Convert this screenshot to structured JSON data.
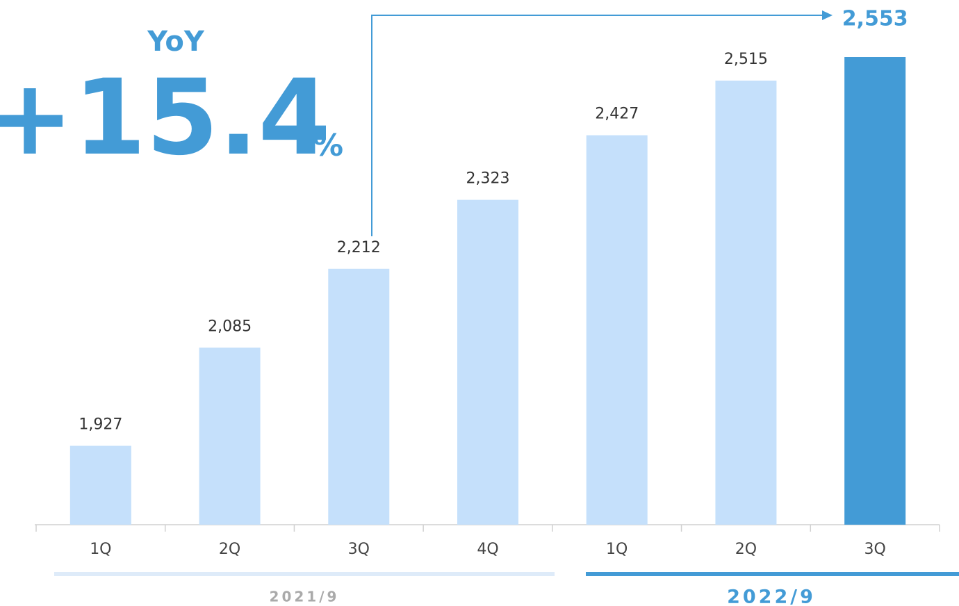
{
  "chart_data": {
    "type": "bar",
    "categories": [
      "1Q",
      "2Q",
      "3Q",
      "4Q",
      "1Q",
      "2Q",
      "3Q"
    ],
    "values": [
      1927,
      2085,
      2212,
      2323,
      2427,
      2515,
      2553
    ],
    "value_labels": [
      "1,927",
      "2,085",
      "2,212",
      "2,323",
      "2,427",
      "2,515",
      "2,553"
    ],
    "colors": [
      "#c5e0fb",
      "#c5e0fb",
      "#c5e0fb",
      "#c5e0fb",
      "#c5e0fb",
      "#c5e0fb",
      "#439bd6"
    ],
    "ylim": [
      1800,
      2600
    ],
    "groups": [
      "2021/9",
      "2022/9"
    ],
    "yoy_label": "YoY",
    "yoy_value": "+15.4",
    "yoy_unit": "%"
  }
}
